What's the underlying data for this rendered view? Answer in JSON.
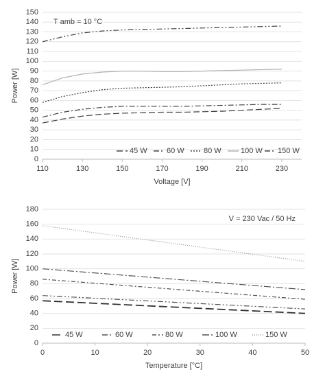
{
  "chart_data": [
    {
      "type": "line",
      "annotation": "T amb = 10 °C",
      "xlabel": "Voltage  [V]",
      "ylabel": "Power [W]",
      "x": [
        110,
        120,
        130,
        140,
        150,
        160,
        170,
        180,
        190,
        200,
        210,
        220,
        230
      ],
      "xlim": [
        110,
        240
      ],
      "xticks": [
        110,
        130,
        150,
        170,
        190,
        210,
        230
      ],
      "ylim": [
        0,
        150
      ],
      "yticks": [
        0,
        10,
        20,
        30,
        40,
        50,
        60,
        70,
        80,
        90,
        100,
        110,
        120,
        130,
        140,
        150
      ],
      "grid": true,
      "legend": "lower right",
      "series": [
        {
          "name": "45 W",
          "color": "#404040",
          "dash": "9,4",
          "values": [
            37,
            41,
            44,
            46,
            47,
            47.5,
            48,
            48,
            48.5,
            49,
            50,
            51,
            52
          ]
        },
        {
          "name": "60 W",
          "color": "#404040",
          "dash": "8,3,2,3",
          "values": [
            43,
            48,
            51,
            53,
            54,
            54,
            54,
            54,
            54.5,
            55,
            55.5,
            56,
            56
          ]
        },
        {
          "name": "80 W",
          "color": "#404040",
          "dash": "2,2",
          "values": [
            58,
            64,
            68,
            71,
            72.5,
            73,
            73.5,
            74,
            75,
            76,
            77,
            77.5,
            78
          ]
        },
        {
          "name": "100 W",
          "color": "#b0b0b0",
          "dash": "",
          "values": [
            76,
            83,
            87,
            89,
            90,
            90,
            89.5,
            89.5,
            90,
            90.5,
            91,
            91.5,
            92
          ]
        },
        {
          "name": "150 W",
          "color": "#404040",
          "dash": "8,3,2,3,2,3",
          "values": [
            120,
            125,
            129,
            131,
            132,
            132.5,
            133,
            133.5,
            134,
            134.5,
            135,
            135.5,
            136
          ]
        }
      ]
    },
    {
      "type": "line",
      "annotation": "V = 230 Vac  / 50 Hz",
      "xlabel": "Temperature [°C]",
      "ylabel": "Power [W]",
      "x": [
        0,
        50
      ],
      "xlim": [
        0,
        50
      ],
      "xticks": [
        0,
        10,
        20,
        30,
        40,
        50
      ],
      "ylim": [
        0,
        180
      ],
      "yticks": [
        0,
        20,
        40,
        60,
        80,
        100,
        120,
        140,
        160,
        180
      ],
      "grid": true,
      "legend": "lower left",
      "series": [
        {
          "name": "45 W",
          "color": "#303030",
          "dash": "12,5",
          "values": [
            57,
            40
          ]
        },
        {
          "name": "60 W",
          "color": "#505050",
          "dash": "8,3,2,3,2,3",
          "values": [
            64,
            46
          ]
        },
        {
          "name": "80 W",
          "color": "#505050",
          "dash": "6,3,2,3",
          "values": [
            86,
            59
          ]
        },
        {
          "name": "100 W",
          "color": "#505050",
          "dash": "10,3,2,3",
          "values": [
            100,
            72
          ]
        },
        {
          "name": "150 W",
          "color": "#909090",
          "dash": "1,2",
          "values": [
            158,
            110
          ]
        }
      ]
    }
  ]
}
